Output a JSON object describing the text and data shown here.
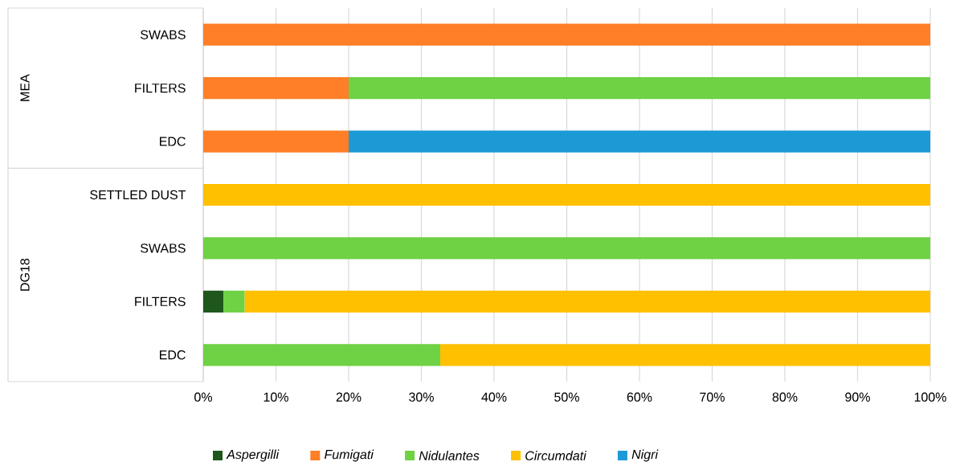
{
  "chart_data": {
    "type": "bar",
    "orientation": "horizontal",
    "stacked": true,
    "categories": [
      "SWABS",
      "FILTERS",
      "EDC",
      "SETTLED DUST",
      "SWABS",
      "FILTERS",
      "EDC"
    ],
    "annotations": [
      "MEA",
      "DG18"
    ],
    "series": [
      {
        "name": "Aspergilli",
        "color": "#1e561c",
        "values": [
          null,
          null,
          null,
          null,
          null,
          2.8,
          null
        ]
      },
      {
        "name": "Fumigati",
        "color": "#fe7f27",
        "values": [
          100,
          20,
          20,
          null,
          null,
          null,
          null
        ]
      },
      {
        "name": "Nidulantes",
        "color": "#6fd144",
        "values": [
          null,
          80,
          null,
          null,
          100,
          2.9,
          32.6
        ]
      },
      {
        "name": "Circumdati",
        "color": "#ffc000",
        "values": [
          null,
          null,
          null,
          100,
          null,
          94.3,
          67.4
        ]
      },
      {
        "name": "Nigri",
        "color": "#1c9ad6",
        "values": [
          null,
          null,
          80,
          null,
          null,
          null,
          null
        ]
      }
    ],
    "xlim": [
      0,
      100
    ],
    "xticks": [
      {
        "value": 0,
        "label": "0%"
      },
      {
        "value": 10,
        "label": "10%"
      },
      {
        "value": 20,
        "label": "20%"
      },
      {
        "value": 30,
        "label": "30%"
      },
      {
        "value": 40,
        "label": "40%"
      },
      {
        "value": 50,
        "label": "50%"
      },
      {
        "value": 60,
        "label": "60%"
      },
      {
        "value": 70,
        "label": "70%"
      },
      {
        "value": 80,
        "label": "80%"
      },
      {
        "value": 90,
        "label": "90%"
      },
      {
        "value": 100,
        "label": "100%"
      }
    ],
    "grid": "x",
    "legend": "bottom"
  }
}
